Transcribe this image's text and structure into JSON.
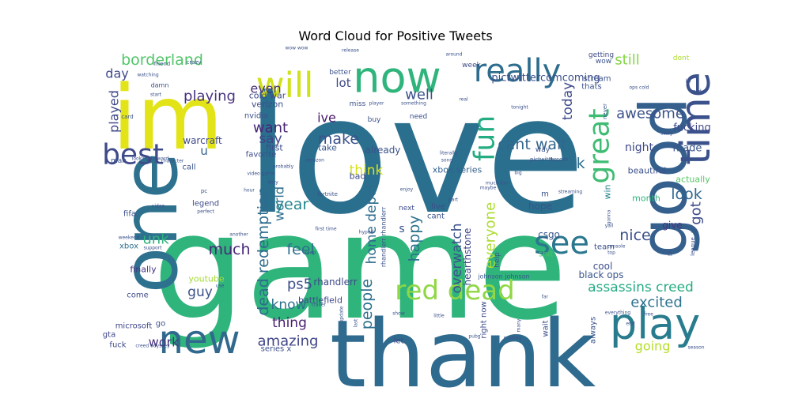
{
  "chart_data": {
    "type": "wordcloud",
    "title": "Word Cloud for Positive Tweets",
    "background": "#ffffff",
    "colormap": "viridis",
    "words": [
      {
        "text": "love",
        "color": "#2a6f8e"
      },
      {
        "text": "game",
        "color": "#2fb47c"
      },
      {
        "text": "thank",
        "color": "#2e6b8e"
      },
      {
        "text": "im",
        "color": "#e3e418"
      },
      {
        "text": "one",
        "color": "#2d718e"
      },
      {
        "text": "good",
        "color": "#35608d"
      },
      {
        "text": "now",
        "color": "#2fb47c"
      },
      {
        "text": "will",
        "color": "#d0e11c"
      },
      {
        "text": "really",
        "color": "#2e6d8e"
      },
      {
        "text": "time",
        "color": "#3b518b"
      },
      {
        "text": "play",
        "color": "#287c8e"
      },
      {
        "text": "new",
        "color": "#31688e"
      },
      {
        "text": "best",
        "color": "#3e4a89"
      },
      {
        "text": "see",
        "color": "#2a778e"
      },
      {
        "text": "great",
        "color": "#3fbc73"
      },
      {
        "text": "fun",
        "color": "#25ac82"
      },
      {
        "text": "red dead",
        "color": "#8fd744"
      },
      {
        "text": "assassins creed",
        "color": "#25ab82"
      },
      {
        "text": "borderland",
        "color": "#52c569"
      },
      {
        "text": "playing",
        "color": "#46317e"
      },
      {
        "text": "day",
        "color": "#3f4889"
      },
      {
        "text": "lot",
        "color": "#3e4989"
      },
      {
        "text": "still",
        "color": "#86d549"
      },
      {
        "text": "pictwittercomcoming",
        "color": "#3c4f8a"
      },
      {
        "text": "even",
        "color": "#472e7c"
      },
      {
        "text": "well",
        "color": "#3b528b"
      },
      {
        "text": "ive",
        "color": "#481769"
      },
      {
        "text": "make",
        "color": "#3b528b"
      },
      {
        "text": "want",
        "color": "#482677"
      },
      {
        "text": "say",
        "color": "#404588"
      },
      {
        "text": "cant wait",
        "color": "#32658e"
      },
      {
        "text": "back",
        "color": "#2f6c8e"
      },
      {
        "text": "awesome",
        "color": "#3b528b"
      },
      {
        "text": "today",
        "color": "#3e4a89"
      },
      {
        "text": "night",
        "color": "#3f4889"
      },
      {
        "text": "look",
        "color": "#31688e"
      },
      {
        "text": "nice",
        "color": "#3b528b"
      },
      {
        "text": "made",
        "color": "#39558c"
      },
      {
        "text": "fucking",
        "color": "#3f4889"
      },
      {
        "text": "got",
        "color": "#3e4c8a"
      },
      {
        "text": "excited",
        "color": "#2c738e"
      },
      {
        "text": "going",
        "color": "#b5de2b"
      },
      {
        "text": "played",
        "color": "#3f4788"
      },
      {
        "text": "warcraft",
        "color": "#3e4989"
      },
      {
        "text": "u",
        "color": "#34618d"
      },
      {
        "text": "world",
        "color": "#2e6e8e"
      },
      {
        "text": "year",
        "color": "#25858e"
      },
      {
        "text": "think",
        "color": "#d8e219"
      },
      {
        "text": "feel",
        "color": "#2d708e"
      },
      {
        "text": "happy",
        "color": "#2c738e"
      },
      {
        "text": "much",
        "color": "#482878"
      },
      {
        "text": "home depot",
        "color": "#2f6c8e"
      },
      {
        "text": "people",
        "color": "#2d718e"
      },
      {
        "text": "overwatch",
        "color": "#3b528b"
      },
      {
        "text": "everyone",
        "color": "#addc30"
      },
      {
        "text": "dead redemption",
        "color": "#2e6b8e"
      },
      {
        "text": "ps5",
        "color": "#3c4f8a"
      },
      {
        "text": "guy",
        "color": "#3b528b"
      },
      {
        "text": "know",
        "color": "#2c728e"
      },
      {
        "text": "thing",
        "color": "#481f70"
      },
      {
        "text": "amazing",
        "color": "#404588"
      },
      {
        "text": "work",
        "color": "#46327e"
      },
      {
        "text": "unk",
        "color": "#2fb47c"
      },
      {
        "text": "rhandlerr",
        "color": "#3e4989"
      },
      {
        "text": "hearthstone",
        "color": "#3f4889"
      },
      {
        "text": "black ops",
        "color": "#39568c"
      },
      {
        "text": "cool",
        "color": "#3d4e8a"
      },
      {
        "text": "csgo",
        "color": "#39558c"
      },
      {
        "text": "hope",
        "color": "#3a538b"
      },
      {
        "text": "give",
        "color": "#46327e"
      },
      {
        "text": "month",
        "color": "#2fb47c"
      },
      {
        "text": "beautiful",
        "color": "#3b528b"
      },
      {
        "text": "actually",
        "color": "#56c667"
      },
      {
        "text": "win",
        "color": "#25848e"
      },
      {
        "text": "xbox series",
        "color": "#34618d"
      },
      {
        "text": "already",
        "color": "#3b528b"
      },
      {
        "text": "first",
        "color": "#3d4d8a"
      },
      {
        "text": "take",
        "color": "#38598c"
      },
      {
        "text": "bad",
        "color": "#3e4a89"
      },
      {
        "text": "cold war",
        "color": "#3e4a89"
      },
      {
        "text": "verizon",
        "color": "#3c4f8a"
      },
      {
        "text": "nvidia",
        "color": "#3b528b"
      },
      {
        "text": "favorite",
        "color": "#3d4e8a"
      },
      {
        "text": "legend",
        "color": "#3e4c8a"
      },
      {
        "text": "fifa",
        "color": "#3b528b"
      },
      {
        "text": "xbox",
        "color": "#2e6f8e"
      },
      {
        "text": "finally",
        "color": "#453581"
      },
      {
        "text": "youtube",
        "color": "#a5db36"
      },
      {
        "text": "come",
        "color": "#3e4989"
      },
      {
        "text": "microsoft",
        "color": "#3f4788"
      },
      {
        "text": "gta",
        "color": "#3f4788"
      },
      {
        "text": "fuck",
        "color": "#3e4a89"
      },
      {
        "text": "go",
        "color": "#3b528b"
      },
      {
        "text": "battlefield",
        "color": "#3f4788"
      },
      {
        "text": "series x",
        "color": "#3c4f8a"
      },
      {
        "text": "let",
        "color": "#3f4788"
      },
      {
        "text": "cant",
        "color": "#3b528b"
      },
      {
        "text": "live",
        "color": "#3c4f8a"
      },
      {
        "text": "next",
        "color": "#3e4c8a"
      },
      {
        "text": "s",
        "color": "#39568c"
      },
      {
        "text": "call",
        "color": "#3b528b"
      },
      {
        "text": "right now",
        "color": "#3e4a89"
      },
      {
        "text": "always",
        "color": "#3b528b"
      },
      {
        "text": "wait",
        "color": "#3c4f8a"
      },
      {
        "text": "shit",
        "color": "#4ac16d"
      },
      {
        "text": "help",
        "color": "#3b528b"
      },
      {
        "text": "team",
        "color": "#3c4f8a"
      },
      {
        "text": "stream",
        "color": "#3b528b"
      },
      {
        "text": "thats",
        "color": "#3b528b"
      },
      {
        "text": "getting",
        "color": "#3e4a89"
      },
      {
        "text": "wow",
        "color": "#3b528b"
      },
      {
        "text": "dont",
        "color": "#addc30"
      },
      {
        "text": "week",
        "color": "#3e4a89"
      },
      {
        "text": "better",
        "color": "#3b528b"
      },
      {
        "text": "miss",
        "color": "#3b528b"
      },
      {
        "text": "need",
        "color": "#3b528b"
      },
      {
        "text": "buy",
        "color": "#3b528b"
      },
      {
        "text": "way",
        "color": "#3b528b"
      },
      {
        "text": "man",
        "color": "#3b528b"
      },
      {
        "text": "johnson johnson",
        "color": "#39568c"
      },
      {
        "text": "pictwittercom",
        "color": "#3b528b"
      },
      {
        "text": "friend",
        "color": "#3b528b"
      },
      {
        "text": "crazy",
        "color": "#3b528b"
      },
      {
        "text": "damn",
        "color": "#3b528b"
      },
      {
        "text": "watching",
        "color": "#3b528b"
      },
      {
        "text": "start",
        "color": "#3b528b"
      },
      {
        "text": "card",
        "color": "#3b528b"
      },
      {
        "text": "looking forward",
        "color": "#3b528b"
      },
      {
        "text": "character",
        "color": "#3b528b"
      },
      {
        "text": "video game",
        "color": "#3b528b"
      },
      {
        "text": "probably",
        "color": "#3b528b"
      },
      {
        "text": "amazon",
        "color": "#3b528b"
      },
      {
        "text": "rhandlerr rhandlerr",
        "color": "#3b528b"
      },
      {
        "text": "release",
        "color": "#3b528b"
      },
      {
        "text": "around",
        "color": "#3b528b"
      },
      {
        "text": "lol",
        "color": "#3b528b"
      },
      {
        "text": "god",
        "color": "#3b528b"
      },
      {
        "text": "pc",
        "color": "#3b528b"
      },
      {
        "text": "fortnite",
        "color": "#3b528b"
      },
      {
        "text": "duty",
        "color": "#3b528b"
      },
      {
        "text": "hour",
        "color": "#3b528b"
      },
      {
        "text": "perfect",
        "color": "#3b528b"
      },
      {
        "text": "video",
        "color": "#3b528b"
      },
      {
        "text": "weekend",
        "color": "#3b528b"
      },
      {
        "text": "support",
        "color": "#3b528b"
      },
      {
        "text": "another",
        "color": "#3b528b"
      },
      {
        "text": "first time",
        "color": "#3b528b"
      },
      {
        "text": "use",
        "color": "#3b528b"
      },
      {
        "text": "trailer",
        "color": "#3b528b"
      },
      {
        "text": "update",
        "color": "#3b528b"
      },
      {
        "text": "last",
        "color": "#3b528b"
      },
      {
        "text": "creed odyssey",
        "color": "#3b528b"
      },
      {
        "text": "enjoy",
        "color": "#3b528b"
      },
      {
        "text": "part",
        "color": "#3b528b"
      },
      {
        "text": "much fun",
        "color": "#3b528b"
      },
      {
        "text": "maybe",
        "color": "#3b528b"
      },
      {
        "text": "m",
        "color": "#3b528b"
      },
      {
        "text": "player",
        "color": "#3b528b"
      },
      {
        "text": "something",
        "color": "#3b528b"
      },
      {
        "text": "literally",
        "color": "#3b528b"
      },
      {
        "text": "song",
        "color": "#3b528b"
      },
      {
        "text": "real",
        "color": "#3b528b"
      },
      {
        "text": "tonight",
        "color": "#3b528b"
      },
      {
        "text": "streaming",
        "color": "#3b528b"
      },
      {
        "text": "never",
        "color": "#3b528b"
      },
      {
        "text": "ops cold",
        "color": "#3b528b"
      },
      {
        "text": "story",
        "color": "#3b528b"
      },
      {
        "text": "gonna",
        "color": "#3b528b"
      },
      {
        "text": "yall",
        "color": "#3b528b"
      },
      {
        "text": "league",
        "color": "#3b528b"
      },
      {
        "text": "ill",
        "color": "#3b528b"
      },
      {
        "text": "top",
        "color": "#3b528b"
      },
      {
        "text": "everything",
        "color": "#3b528b"
      },
      {
        "text": "end",
        "color": "#3b528b"
      },
      {
        "text": "free",
        "color": "#3b528b"
      },
      {
        "text": "season",
        "color": "#3b528b"
      },
      {
        "text": "little",
        "color": "#3b528b"
      },
      {
        "text": "show",
        "color": "#3b528b"
      },
      {
        "text": "pubg",
        "color": "#3b528b"
      },
      {
        "text": "many",
        "color": "#3b528b"
      },
      {
        "text": "making",
        "color": "#3b528b"
      },
      {
        "text": "keep",
        "color": "#3b528b"
      },
      {
        "text": "hyped",
        "color": "#3b528b"
      },
      {
        "text": "big",
        "color": "#3b528b"
      },
      {
        "text": "console",
        "color": "#3b528b"
      },
      {
        "text": "oh",
        "color": "#3b528b"
      },
      {
        "text": "far",
        "color": "#3b528b"
      },
      {
        "text": "wow wow",
        "color": "#3b528b"
      }
    ]
  }
}
